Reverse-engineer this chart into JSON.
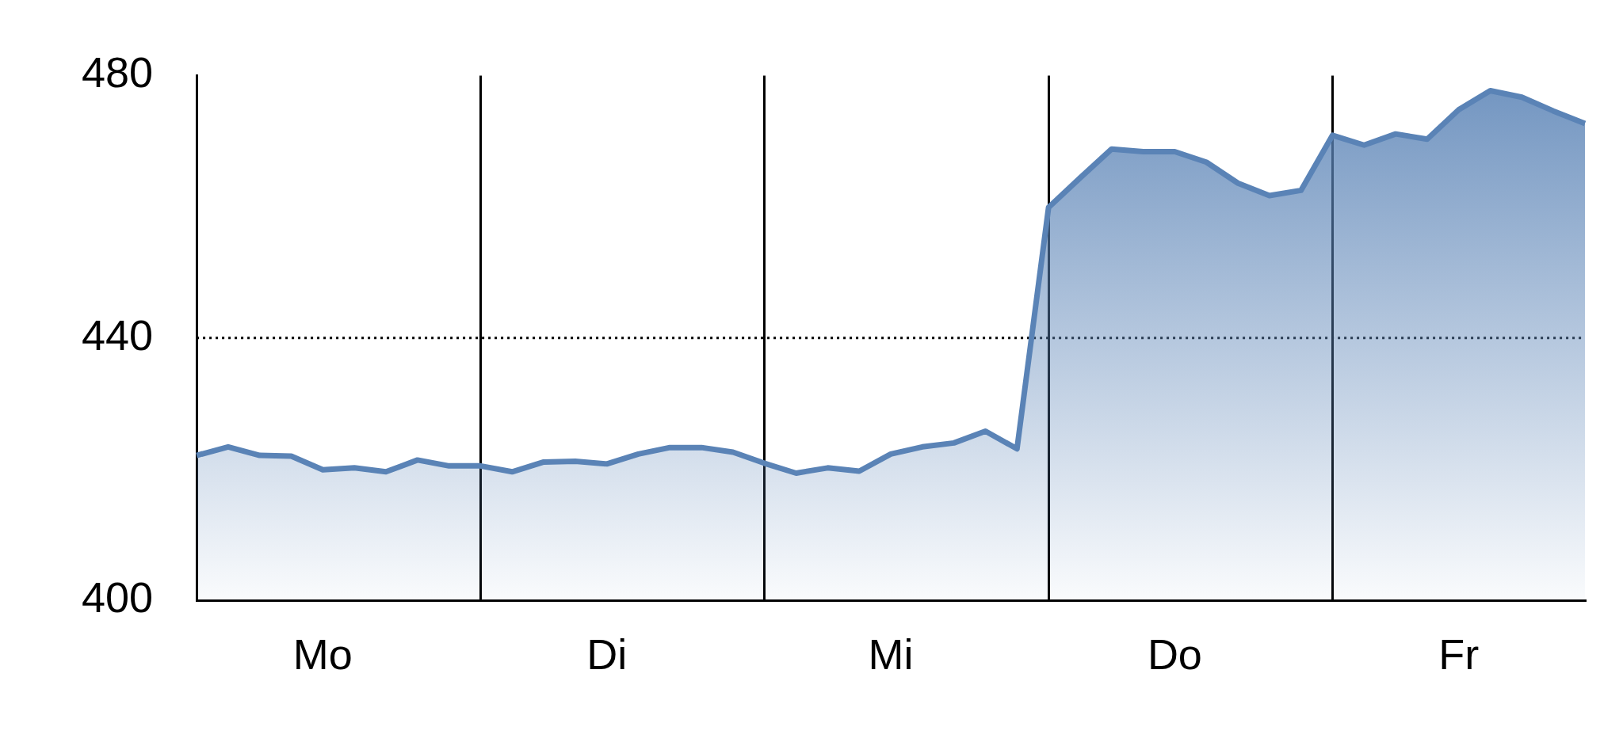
{
  "chart_data": {
    "type": "area",
    "categories": [
      null,
      null,
      null,
      null,
      "Mo",
      null,
      null,
      null,
      null,
      null,
      null,
      null,
      null,
      "Di",
      null,
      null,
      null,
      null,
      null,
      null,
      null,
      null,
      "Mi",
      null,
      null,
      null,
      null,
      null,
      null,
      null,
      null,
      "Do",
      null,
      null,
      null,
      null,
      null,
      null,
      null,
      null,
      "Fr",
      null,
      null,
      null,
      null
    ],
    "series": [
      {
        "color": "#5a83b6",
        "values": [
          422.1,
          423.4,
          422.1,
          422.0,
          419.9,
          420.2,
          419.6,
          421.4,
          420.5,
          420.5,
          419.6,
          421.1,
          421.2,
          420.8,
          422.3,
          423.3,
          423.3,
          422.6,
          420.9,
          419.4,
          420.2,
          419.7,
          422.3,
          423.4,
          424.0,
          425.8,
          423.1,
          459.9,
          464.4,
          468.8,
          468.4,
          468.4,
          466.8,
          463.6,
          461.7,
          462.5,
          470.9,
          469.4,
          471.1,
          470.3,
          474.8,
          477.7,
          476.7,
          474.6,
          472.7
        ]
      }
    ],
    "ylim": [
      400,
      480
    ],
    "yticks": [
      400,
      440,
      480
    ],
    "ref_lines": [
      {
        "axis": "y",
        "value": 440,
        "line_style": "dotted"
      }
    ],
    "grid": "x",
    "legend": false
  }
}
